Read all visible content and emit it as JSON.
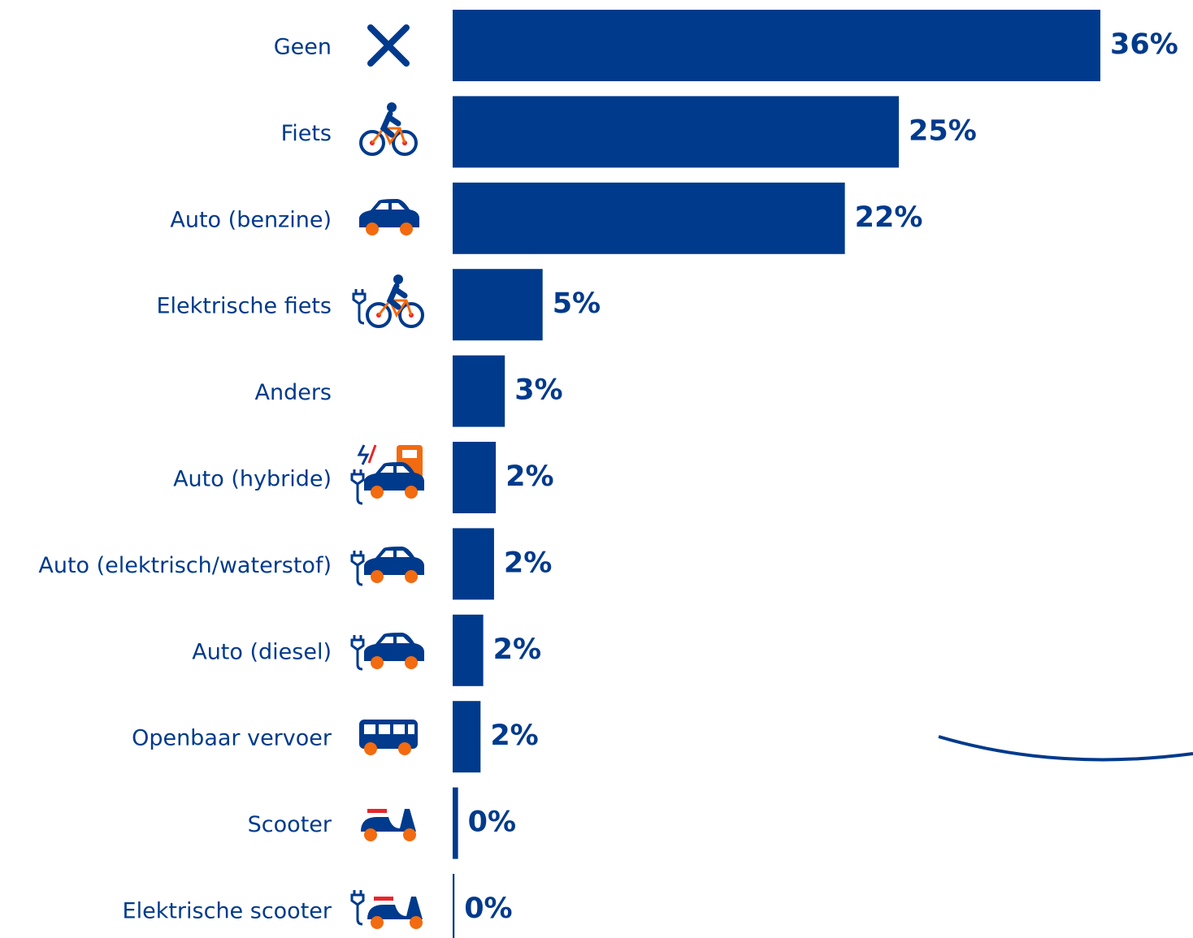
{
  "chart_data": {
    "type": "bar",
    "orientation": "horizontal",
    "color": "#003a8c",
    "categories": [
      "Geen",
      "Fiets",
      "Auto (benzine)",
      "Elektrische fiets",
      "Anders",
      "Auto (hybride)",
      "Auto (elektrisch/waterstof)",
      "Auto (diesel)",
      "Openbaar vervoer",
      "Scooter",
      "Elektrische scooter"
    ],
    "values": [
      36.0,
      24.8,
      21.8,
      5.0,
      2.9,
      2.4,
      2.3,
      1.7,
      1.55,
      0.3,
      0.1
    ],
    "value_labels": [
      "36%",
      "25%",
      "22%",
      "5%",
      "3%",
      "2%",
      "2%",
      "2%",
      "2%",
      "0%",
      "0%"
    ]
  }
}
